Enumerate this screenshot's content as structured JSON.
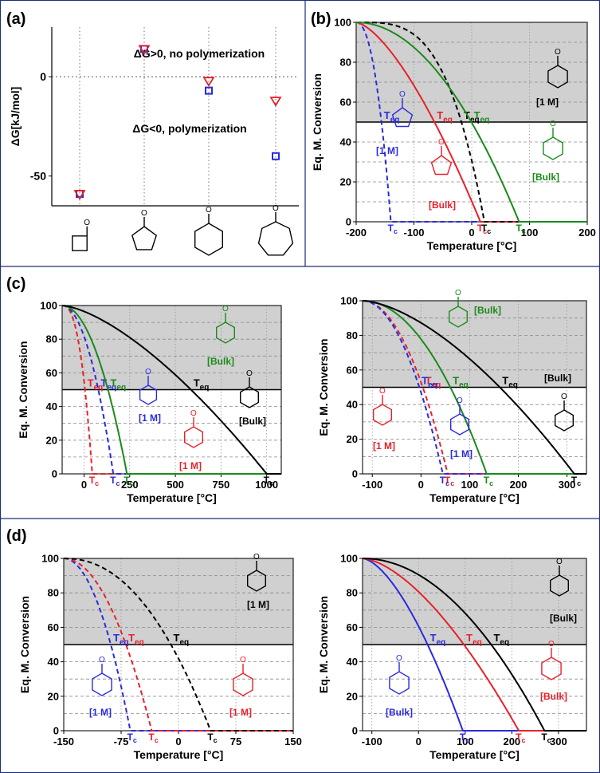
{
  "panels": {
    "a": "(a)",
    "b": "(b)",
    "c": "(c)",
    "d": "(d)"
  },
  "chart_data": [
    {
      "id": "a",
      "type": "scatter",
      "ylabel": "ΔG[kJ/mol]",
      "yticks": [
        -50,
        0
      ],
      "ylim": [
        -65,
        25
      ],
      "categories": [
        "β-lactone (4-ring)",
        "γ-butyrolactone (5-ring)",
        "δ-valerolactone (6-ring)",
        "ε-caprolactone (7-ring)"
      ],
      "annotations": [
        "ΔG>0, no polymerization",
        "ΔG<0, polymerization"
      ],
      "series": [
        {
          "marker": "triangle-down",
          "color": "#e8202a",
          "values": [
            -59,
            14,
            -2,
            -12
          ]
        },
        {
          "marker": "square",
          "color": "#2a2ae0",
          "values": [
            -59,
            14,
            -7,
            -40
          ]
        }
      ]
    },
    {
      "id": "b",
      "type": "line",
      "xlabel": "Temperature [°C]",
      "ylabel": "Eq. M. Conversion",
      "xlim": [
        -200,
        200
      ],
      "ylim": [
        0,
        100
      ],
      "xticks": [
        -200,
        -100,
        0,
        100,
        200
      ],
      "yticks": [
        0,
        20,
        40,
        60,
        80,
        100
      ],
      "structure_labels": [
        "[1 M]",
        "[1 M]",
        "[Bulk]",
        "[Bulk]"
      ],
      "series": [
        {
          "color": "#2a2ae0",
          "dash": true,
          "tc": -140,
          "shape": 2.2,
          "teq_label": "Teq",
          "tc_label": "Tc"
        },
        {
          "color": "#e8202a",
          "dash": false,
          "tc": 15,
          "shape": 1.5,
          "teq_label": "Teq",
          "tc_label": "Tc"
        },
        {
          "color": "#000000",
          "dash": true,
          "tc": 22,
          "shape": 3.5,
          "teq_label": "Teq",
          "tc_label": "Tc"
        },
        {
          "color": "#1a8a1a",
          "dash": false,
          "tc": 82,
          "shape": 2.0,
          "teq_label": "Teq",
          "tc_label": "Tc"
        }
      ]
    },
    {
      "id": "c1",
      "type": "line",
      "xlabel": "Temperature [°C]",
      "ylabel": "Eq. M. Conversion",
      "xlim": [
        -120,
        1080
      ],
      "ylim": [
        0,
        100
      ],
      "xticks": [
        0,
        250,
        500,
        750,
        1000
      ],
      "yticks": [
        0,
        20,
        40,
        60,
        80,
        100
      ],
      "structure_labels": [
        "[Bulk]",
        "[1 M]",
        "[Bulk]",
        "[1 M]"
      ],
      "series": [
        {
          "color": "#e8202a",
          "dash": true,
          "tc": 45,
          "shape": 2.5,
          "teq_label": "Teq",
          "tc_label": "Tc"
        },
        {
          "color": "#2a2ae0",
          "dash": true,
          "tc": 160,
          "shape": 2.0,
          "teq_label": "Teq",
          "tc_label": "Tc"
        },
        {
          "color": "#1a8a1a",
          "dash": false,
          "tc": 235,
          "shape": 2.0,
          "teq_label": "Teq",
          "tc_label": "Tc"
        },
        {
          "color": "#000000",
          "dash": false,
          "tc": 1000,
          "shape": 1.5,
          "teq_label": "Teq",
          "tc_label": "Tc"
        }
      ]
    },
    {
      "id": "c2",
      "type": "line",
      "xlabel": "Temperature [°C]",
      "ylabel": "Eq. M. Conversion",
      "xlim": [
        -120,
        340
      ],
      "ylim": [
        0,
        100
      ],
      "xticks": [
        -100,
        0,
        100,
        200,
        300
      ],
      "yticks": [
        0,
        20,
        40,
        60,
        80,
        100
      ],
      "structure_labels": [
        "[Bulk]",
        "[Bulk]",
        "[1 M]",
        "[1 M]"
      ],
      "series": [
        {
          "color": "#e8202a",
          "dash": true,
          "tc": 55,
          "shape": 2.0,
          "teq_label": "Teq",
          "tc_label": "Tc"
        },
        {
          "color": "#2a2ae0",
          "dash": true,
          "tc": 45,
          "shape": 2.0,
          "teq_label": "Teq",
          "tc_label": "Tc"
        },
        {
          "color": "#1a8a1a",
          "dash": false,
          "tc": 135,
          "shape": 2.0,
          "teq_label": "Teq",
          "tc_label": "Tc"
        },
        {
          "color": "#000000",
          "dash": false,
          "tc": 315,
          "shape": 1.6,
          "teq_label": "Teq",
          "tc_label": "Tc"
        }
      ]
    },
    {
      "id": "d1",
      "type": "line",
      "xlabel": "Temperature [°C]",
      "ylabel": "Eq. M. Conversion",
      "xlim": [
        -150,
        150
      ],
      "ylim": [
        0,
        100
      ],
      "xticks": [
        -150,
        -75,
        0,
        75,
        150
      ],
      "yticks": [
        0,
        20,
        40,
        60,
        80,
        100
      ],
      "structure_labels": [
        "[1 M]",
        "[1 M]",
        "[1 M]"
      ],
      "series": [
        {
          "color": "#2a2ae0",
          "dash": true,
          "tc": -63,
          "shape": 2.0,
          "teq_label": "Teq",
          "tc_label": "Tc"
        },
        {
          "color": "#e8202a",
          "dash": true,
          "tc": -35,
          "shape": 2.0,
          "teq_label": "Teq",
          "tc_label": "Tc"
        },
        {
          "color": "#000000",
          "dash": true,
          "tc": 42,
          "shape": 2.2,
          "teq_label": "Teq",
          "tc_label": "Tc"
        }
      ]
    },
    {
      "id": "d2",
      "type": "line",
      "xlabel": "Temperature [°C]",
      "ylabel": "Eq. M. Conversion",
      "xlim": [
        -120,
        360
      ],
      "ylim": [
        0,
        100
      ],
      "xticks": [
        -100,
        0,
        100,
        200,
        300
      ],
      "yticks": [
        0,
        20,
        40,
        60,
        80,
        100
      ],
      "structure_labels": [
        "[Bulk]",
        "[Bulk]",
        "[Bulk]"
      ],
      "series": [
        {
          "color": "#2a2ae0",
          "dash": false,
          "tc": 95,
          "shape": 1.6,
          "teq_label": "Teq",
          "tc_label": "Tc"
        },
        {
          "color": "#e8202a",
          "dash": false,
          "tc": 215,
          "shape": 1.6,
          "teq_label": "Teq",
          "tc_label": "Tc"
        },
        {
          "color": "#000000",
          "dash": false,
          "tc": 270,
          "shape": 2.0,
          "teq_label": "Teq",
          "tc_label": "Tc"
        }
      ]
    }
  ]
}
